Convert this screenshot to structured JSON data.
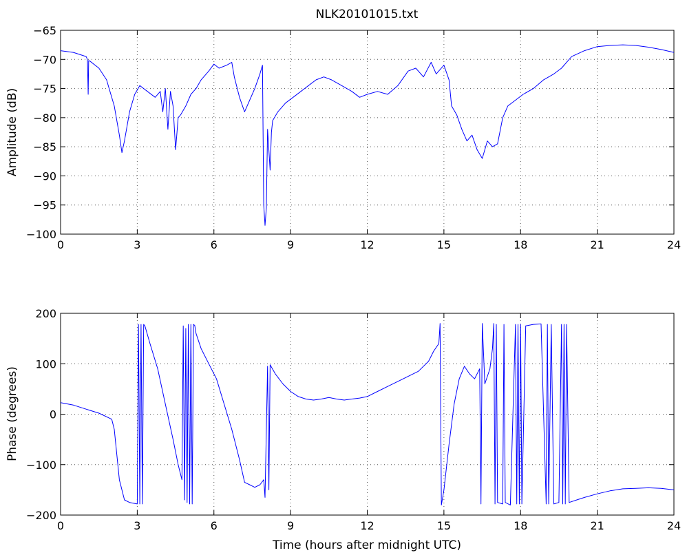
{
  "figure": {
    "title": "NLK20101015.txt"
  },
  "colors": {
    "series": "#0000ff",
    "background": "#ffffff",
    "axes": "#000000"
  },
  "chart_data": [
    {
      "type": "line",
      "title": "NLK20101015.txt",
      "xlabel": "",
      "ylabel": "Amplitude (dB)",
      "xlim": [
        0,
        24
      ],
      "ylim": [
        -100,
        -65
      ],
      "xticks": [
        0,
        3,
        6,
        9,
        12,
        15,
        18,
        21,
        24
      ],
      "yticks": [
        -100,
        -95,
        -90,
        -85,
        -80,
        -75,
        -70,
        -65
      ],
      "xtick_labels": [
        "0",
        "3",
        "6",
        "9",
        "12",
        "15",
        "18",
        "21",
        "24"
      ],
      "ytick_labels": [
        "−100",
        "−95",
        "−90",
        "−85",
        "−80",
        "−75",
        "−70",
        "−65"
      ],
      "grid": true,
      "series": [
        {
          "x": [
            0,
            0.5,
            1.0,
            1.05,
            1.08,
            1.1,
            1.15,
            1.5,
            1.8,
            2.1,
            2.3,
            2.4,
            2.5,
            2.7,
            2.9,
            3.1,
            3.4,
            3.7,
            3.9,
            4.0,
            4.1,
            4.2,
            4.3,
            4.4,
            4.5,
            4.6,
            4.7,
            4.9,
            5.1,
            5.3,
            5.5,
            5.8,
            6.0,
            6.2,
            6.5,
            6.7,
            6.8,
            7.0,
            7.2,
            7.4,
            7.6,
            7.8,
            7.9,
            7.95,
            8.0,
            8.05,
            8.1,
            8.2,
            8.25,
            8.3,
            8.5,
            8.8,
            9.1,
            9.4,
            9.7,
            10.0,
            10.3,
            10.6,
            11.0,
            11.4,
            11.7,
            12.0,
            12.4,
            12.8,
            13.2,
            13.6,
            13.9,
            14.2,
            14.5,
            14.7,
            15.0,
            15.2,
            15.3,
            15.5,
            15.7,
            15.9,
            16.1,
            16.3,
            16.5,
            16.7,
            16.9,
            17.1,
            17.3,
            17.5,
            17.8,
            18.1,
            18.5,
            18.9,
            19.3,
            19.6,
            20.0,
            20.5,
            21.0,
            21.5,
            22.0,
            22.5,
            23.0,
            23.5,
            24.0
          ],
          "values": [
            -68.5,
            -68.8,
            -69.5,
            -70.0,
            -76.0,
            -70.2,
            -70.3,
            -71.5,
            -73.5,
            -78.0,
            -83.0,
            -86.0,
            -84.0,
            -79.0,
            -76.0,
            -74.5,
            -75.5,
            -76.5,
            -75.5,
            -79.0,
            -75.0,
            -82.0,
            -75.5,
            -78.0,
            -85.5,
            -80.0,
            -79.5,
            -78.0,
            -76.0,
            -75.0,
            -73.5,
            -72.0,
            -70.8,
            -71.5,
            -71.0,
            -70.5,
            -73.0,
            -76.5,
            -79.0,
            -77.0,
            -75.0,
            -72.5,
            -71.0,
            -95.0,
            -98.5,
            -95.5,
            -82.0,
            -89.0,
            -82.5,
            -80.5,
            -79.0,
            -77.5,
            -76.5,
            -75.5,
            -74.5,
            -73.5,
            -73.0,
            -73.5,
            -74.5,
            -75.5,
            -76.5,
            -76.0,
            -75.5,
            -76.0,
            -74.5,
            -72.0,
            -71.5,
            -73.0,
            -70.5,
            -72.5,
            -71.0,
            -73.5,
            -78.0,
            -79.5,
            -82.0,
            -84.0,
            -83.0,
            -85.5,
            -87.0,
            -84.0,
            -85.0,
            -84.5,
            -80.0,
            -78.0,
            -77.0,
            -76.0,
            -75.0,
            -73.5,
            -72.5,
            -71.5,
            -69.5,
            -68.5,
            -67.8,
            -67.6,
            -67.5,
            -67.6,
            -67.9,
            -68.3,
            -68.8
          ]
        }
      ]
    },
    {
      "type": "line",
      "title": "",
      "xlabel": "Time (hours after midnight UTC)",
      "ylabel": "Phase (degrees)",
      "xlim": [
        0,
        24
      ],
      "ylim": [
        -200,
        200
      ],
      "xticks": [
        0,
        3,
        6,
        9,
        12,
        15,
        18,
        21,
        24
      ],
      "yticks": [
        -200,
        -100,
        0,
        100,
        200
      ],
      "xtick_labels": [
        "0",
        "3",
        "6",
        "9",
        "12",
        "15",
        "18",
        "21",
        "24"
      ],
      "ytick_labels": [
        "−200",
        "−100",
        "0",
        "100",
        "200"
      ],
      "grid": true,
      "series": [
        {
          "x": [
            0,
            0.5,
            1.0,
            1.5,
            2.0,
            2.1,
            2.3,
            2.5,
            2.7,
            3.0,
            3.05,
            3.1,
            3.15,
            3.2,
            3.25,
            3.3,
            3.5,
            3.8,
            4.1,
            4.4,
            4.6,
            4.75,
            4.8,
            4.85,
            4.9,
            4.95,
            5.0,
            5.05,
            5.1,
            5.15,
            5.2,
            5.25,
            5.3,
            5.5,
            5.8,
            6.1,
            6.4,
            6.7,
            7.0,
            7.2,
            7.4,
            7.6,
            7.8,
            7.95,
            8.0,
            8.1,
            8.15,
            8.2,
            8.4,
            8.7,
            9.0,
            9.3,
            9.6,
            9.9,
            10.2,
            10.5,
            10.8,
            11.1,
            11.4,
            11.7,
            12.0,
            12.4,
            12.8,
            13.2,
            13.6,
            14.0,
            14.4,
            14.6,
            14.8,
            14.85,
            14.9,
            15.0,
            15.2,
            15.4,
            15.6,
            15.8,
            16.0,
            16.2,
            16.4,
            16.45,
            16.5,
            16.6,
            16.8,
            16.9,
            16.95,
            17.0,
            17.05,
            17.1,
            17.3,
            17.35,
            17.4,
            17.6,
            17.8,
            17.85,
            17.9,
            17.95,
            18.0,
            18.05,
            18.2,
            18.5,
            18.8,
            19.0,
            19.05,
            19.1,
            19.2,
            19.3,
            19.5,
            19.6,
            19.65,
            19.7,
            19.75,
            19.8,
            19.9,
            20.2,
            20.5,
            21.0,
            21.5,
            22.0,
            22.5,
            23.0,
            23.5,
            24.0
          ],
          "values": [
            23,
            18,
            10,
            2,
            -10,
            -30,
            -130,
            -170,
            -175,
            -178,
            178,
            -178,
            178,
            -178,
            178,
            175,
            140,
            90,
            20,
            -50,
            -100,
            -130,
            175,
            -170,
            170,
            -175,
            178,
            -178,
            178,
            -178,
            178,
            176,
            160,
            130,
            100,
            70,
            20,
            -30,
            -90,
            -135,
            -140,
            -145,
            -140,
            -130,
            -165,
            95,
            -150,
            98,
            80,
            60,
            45,
            35,
            30,
            28,
            30,
            33,
            30,
            28,
            30,
            32,
            35,
            45,
            55,
            65,
            75,
            85,
            105,
            125,
            140,
            180,
            -180,
            -150,
            -60,
            20,
            70,
            95,
            80,
            70,
            90,
            -178,
            180,
            60,
            90,
            130,
            180,
            -178,
            178,
            -175,
            -178,
            178,
            -175,
            -180,
            178,
            -178,
            178,
            -178,
            178,
            -178,
            175,
            178,
            179,
            -178,
            178,
            -178,
            178,
            -178,
            -175,
            178,
            -178,
            178,
            -178,
            178,
            -175,
            -170,
            -165,
            -158,
            -152,
            -148,
            -147,
            -146,
            -147,
            -150
          ]
        }
      ]
    }
  ]
}
